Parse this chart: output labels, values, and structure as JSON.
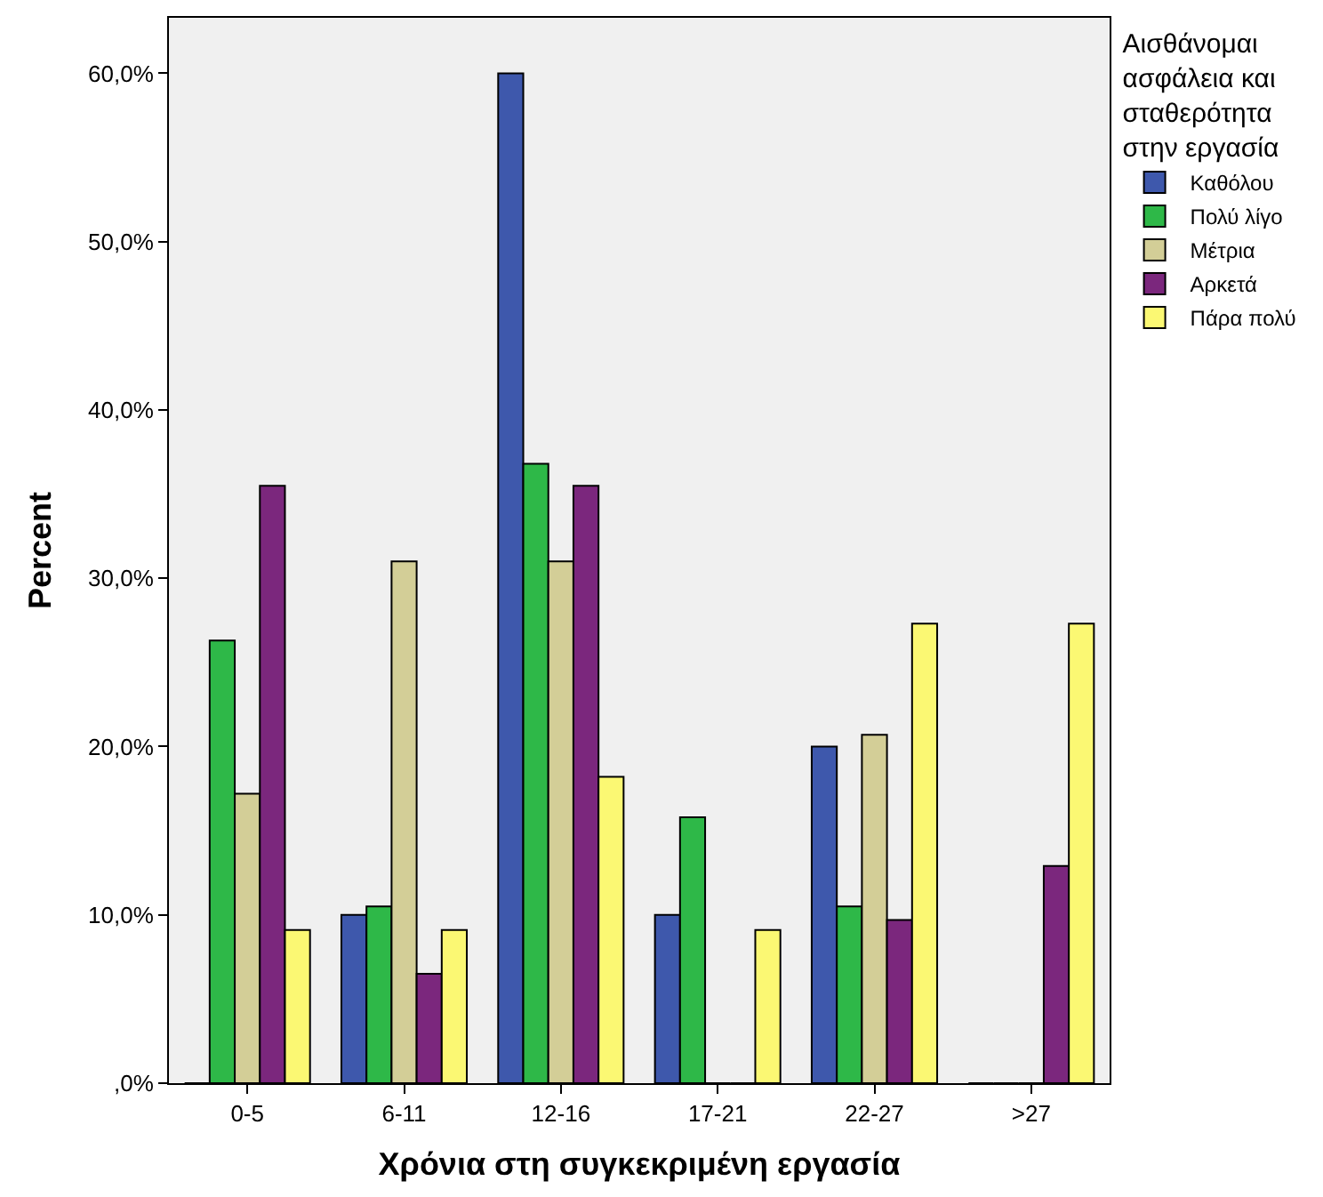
{
  "chart_data": {
    "type": "bar",
    "xlabel": "Χρόνια στη συγκεκριμένη εργασία",
    "ylabel": "Percent",
    "legend_title": "Αισθάνομαι ασφάλεια και σταθερότητα στην εργασία",
    "legend": "right",
    "categories": [
      "0-5",
      "6-11",
      "12-16",
      "17-21",
      "22-27",
      ">27"
    ],
    "series": [
      {
        "name": "Καθόλου",
        "color": "#3e58ac",
        "values": [
          0,
          10.0,
          60.0,
          10.0,
          20.0,
          0
        ]
      },
      {
        "name": "Πολύ λίγο",
        "color": "#2eb848",
        "values": [
          26.3,
          10.5,
          36.8,
          15.8,
          10.5,
          0
        ]
      },
      {
        "name": "Μέτρια",
        "color": "#d3ce97",
        "values": [
          17.2,
          31.0,
          31.0,
          0,
          20.7,
          0
        ]
      },
      {
        "name": "Αρκετά",
        "color": "#7b277d",
        "values": [
          35.5,
          6.5,
          35.5,
          0,
          9.7,
          12.9
        ]
      },
      {
        "name": "Πάρα πολύ",
        "color": "#fbf873",
        "values": [
          9.1,
          9.1,
          18.2,
          9.1,
          27.3,
          27.3
        ]
      }
    ],
    "ylim": [
      0,
      63.3
    ],
    "yticks": [
      {
        "value": 0,
        "label": ",0%"
      },
      {
        "value": 10,
        "label": "10,0%"
      },
      {
        "value": 20,
        "label": "20,0%"
      },
      {
        "value": 30,
        "label": "30,0%"
      },
      {
        "value": 40,
        "label": "40,0%"
      },
      {
        "value": 50,
        "label": "50,0%"
      },
      {
        "value": 60,
        "label": "60,0%"
      }
    ],
    "grid": false
  }
}
